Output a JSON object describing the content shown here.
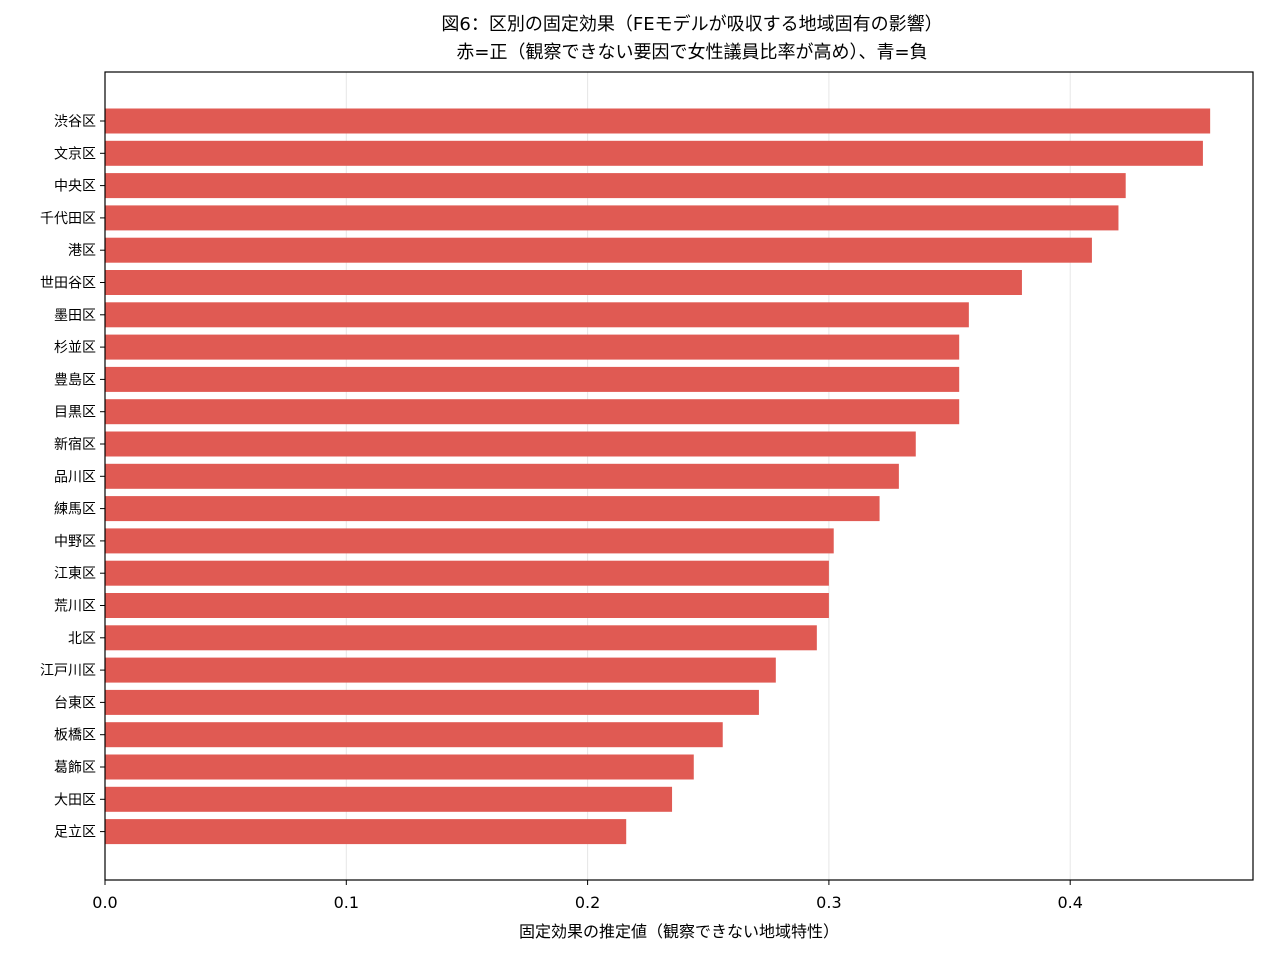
{
  "colors": {
    "bar": "#e05a53",
    "grid": "#e6e6e6",
    "axis": "#000000",
    "background": "#ffffff"
  },
  "chart_data": {
    "type": "bar",
    "orientation": "horizontal",
    "title_line1": "図6：区別の固定効果（FEモデルが吸収する地域固有の影響）",
    "title_line2": "赤=正（観察できない要因で女性議員比率が高め）、青=負",
    "xlabel": "固定効果の推定値（観察できない地域特性）",
    "ylabel": "",
    "xlim": [
      0,
      0.477
    ],
    "xticks": [
      "0.0",
      "0.1",
      "0.2",
      "0.3",
      "0.4"
    ],
    "grid": "vertical",
    "categories": [
      "渋谷区",
      "文京区",
      "中央区",
      "千代田区",
      "港区",
      "世田谷区",
      "墨田区",
      "杉並区",
      "豊島区",
      "目黒区",
      "新宿区",
      "品川区",
      "練馬区",
      "中野区",
      "江東区",
      "荒川区",
      "北区",
      "江戸川区",
      "台東区",
      "板橋区",
      "葛飾区",
      "大田区",
      "足立区"
    ],
    "values": [
      0.458,
      0.455,
      0.423,
      0.42,
      0.409,
      0.38,
      0.358,
      0.354,
      0.354,
      0.354,
      0.336,
      0.329,
      0.321,
      0.302,
      0.3,
      0.3,
      0.295,
      0.278,
      0.271,
      0.256,
      0.244,
      0.235,
      0.216
    ]
  }
}
